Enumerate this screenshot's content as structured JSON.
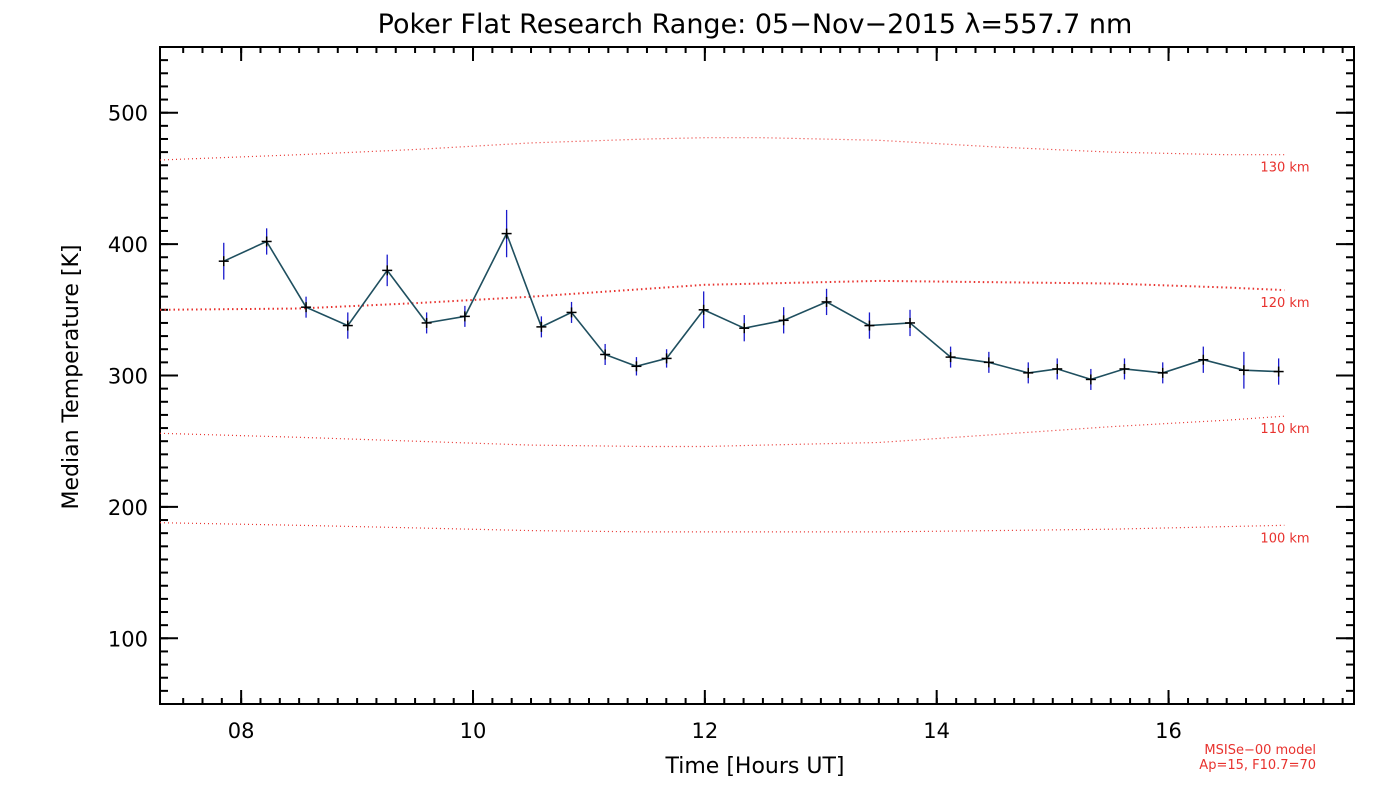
{
  "chart_data": {
    "type": "line",
    "title": "Poker Flat Research Range: 05−Nov−2015 λ=557.7 nm",
    "xlabel": "Time [Hours UT]",
    "ylabel": "Median Temperature [K]",
    "xlim": [
      7.3,
      17.6
    ],
    "ylim": [
      50,
      550
    ],
    "xticks": [
      8,
      10,
      12,
      14,
      16
    ],
    "xtick_labels": [
      "08",
      "10",
      "12",
      "14",
      "16"
    ],
    "yticks": [
      100,
      200,
      300,
      400,
      500
    ],
    "ytick_labels": [
      "100",
      "200",
      "300",
      "400",
      "500"
    ],
    "grid": false,
    "legend": "none",
    "series": [
      {
        "x": [
          7.85,
          8.22,
          8.56,
          8.92,
          9.26,
          9.6,
          9.93,
          10.29,
          10.59,
          10.85,
          11.14,
          11.41,
          11.67,
          11.99,
          12.34,
          12.68,
          13.05,
          13.42,
          13.77,
          14.12,
          14.45,
          14.79,
          15.04,
          15.33,
          15.62,
          15.95,
          16.3,
          16.65,
          16.95
        ],
        "y": [
          387,
          402,
          352,
          338,
          380,
          340,
          345,
          408,
          337,
          348,
          316,
          307,
          313,
          350,
          336,
          342,
          356,
          338,
          340,
          314,
          310,
          302,
          305,
          297,
          305,
          302,
          312,
          304,
          303
        ],
        "err": [
          14,
          10,
          8,
          10,
          12,
          8,
          8,
          18,
          8,
          8,
          8,
          7,
          7,
          14,
          10,
          10,
          10,
          10,
          10,
          8,
          8,
          8,
          8,
          8,
          8,
          8,
          10,
          14,
          10
        ],
        "color": "#1f4f5f",
        "error_color": "#1a1acc"
      }
    ],
    "model_curves": [
      {
        "label": "130 km",
        "x": [
          7.3,
          8.5,
          9.5,
          10.5,
          11.5,
          12.0,
          12.5,
          13.5,
          14.5,
          15.5,
          16.5,
          17.0
        ],
        "y": [
          464,
          468,
          472,
          477,
          480,
          481,
          481,
          479,
          474,
          470,
          468,
          468
        ]
      },
      {
        "label": "120 km",
        "x": [
          7.3,
          8.5,
          9.5,
          10.5,
          11.5,
          12.0,
          12.5,
          13.5,
          14.5,
          15.5,
          16.5,
          17.0
        ],
        "y": [
          350,
          351,
          355,
          360,
          366,
          369,
          370,
          372,
          371,
          370,
          367,
          365
        ]
      },
      {
        "label": "110 km",
        "x": [
          7.3,
          8.5,
          9.5,
          10.5,
          11.5,
          12.0,
          12.5,
          13.5,
          14.5,
          15.5,
          16.5,
          17.0
        ],
        "y": [
          256,
          253,
          250,
          247,
          246,
          246,
          247,
          249,
          255,
          261,
          266,
          269
        ]
      },
      {
        "label": "100 km",
        "x": [
          7.3,
          8.5,
          9.5,
          10.5,
          11.5,
          12.0,
          12.5,
          13.5,
          14.5,
          15.5,
          16.5,
          17.0
        ],
        "y": [
          188,
          186,
          184,
          182,
          181,
          181,
          181,
          181,
          182,
          183,
          185,
          186
        ]
      }
    ],
    "model_color": "#e8322e",
    "model_note": [
      "MSISe−00 model",
      "Ap=15, F10.7=70"
    ]
  }
}
